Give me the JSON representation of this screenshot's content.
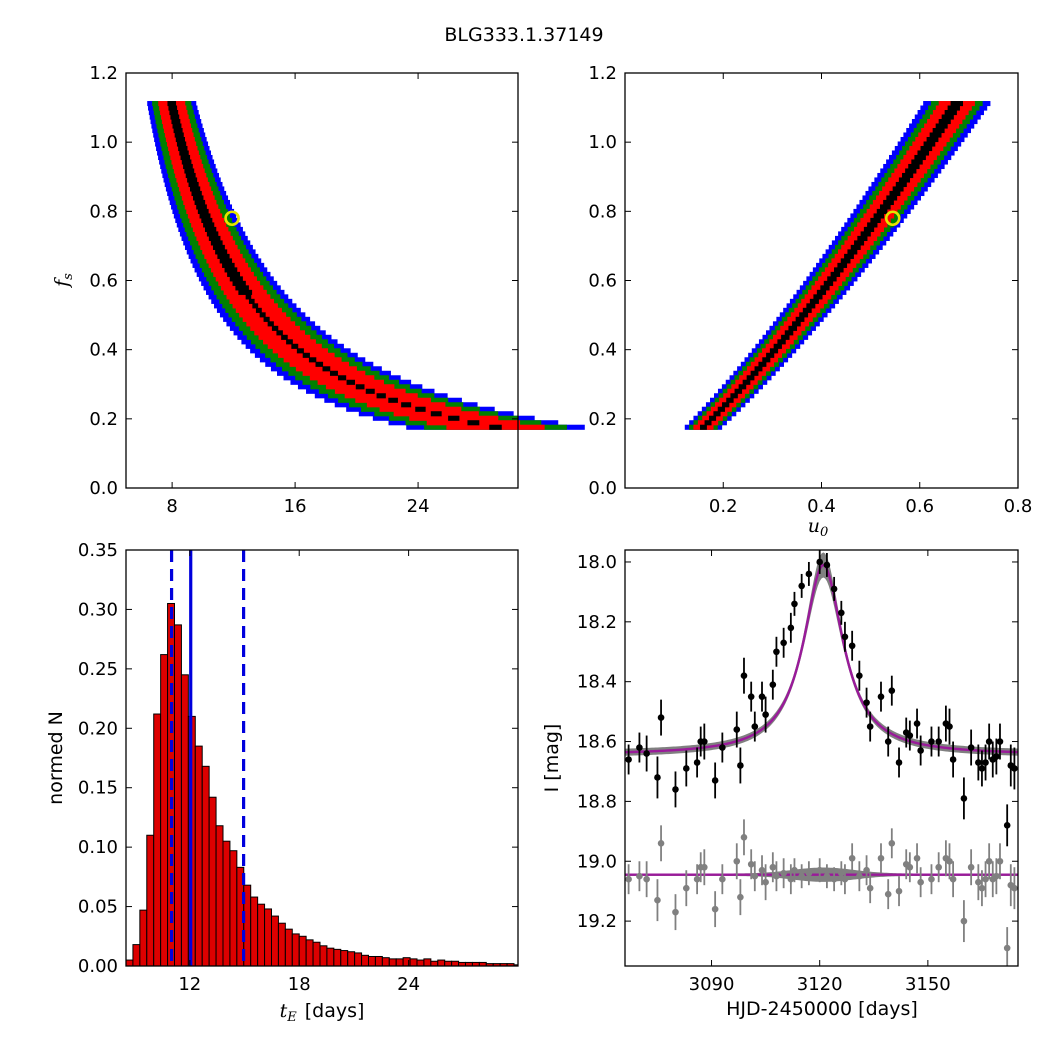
{
  "title": "BLG333.1.37149",
  "colors": {
    "sigma1": "#000000",
    "sigma2": "#ff0000",
    "sigma3": "#008000",
    "sigma4": "#0000ff",
    "best_fit_marker": "#e5e500",
    "hist_bar": "#dd0000",
    "hist_lines": "#0000dd",
    "data_points": "#000000",
    "residuals": "#808080",
    "model_curve": "#9a1a9a",
    "model_band": "#808080"
  },
  "panels": {
    "top_left": {
      "ylabel": "f",
      "ylabel_sub": "s",
      "xlabel": "",
      "xticks": [
        "8",
        "16",
        "24"
      ],
      "yticks": [
        "0.0",
        "0.2",
        "0.4",
        "0.6",
        "0.8",
        "1.0",
        "1.2"
      ]
    },
    "top_right": {
      "xlabel": "u",
      "xlabel_sub": "0",
      "xticks": [
        "0.2",
        "0.4",
        "0.6",
        "0.8"
      ],
      "yticks": [
        "0.0",
        "0.2",
        "0.4",
        "0.6",
        "0.8",
        "1.0",
        "1.2"
      ]
    },
    "bottom_left": {
      "ylabel": "normed N",
      "xlabel_math": "t",
      "xlabel_sub": "E",
      "xlabel_unit": "[days]",
      "xticks": [
        "12",
        "18",
        "24"
      ],
      "yticks": [
        "0.00",
        "0.05",
        "0.10",
        "0.15",
        "0.20",
        "0.25",
        "0.30",
        "0.35"
      ]
    },
    "bottom_right": {
      "ylabel": "I [mag]",
      "xlabel": "HJD-2450000 [days]",
      "xticks": [
        "3090",
        "3120",
        "3150"
      ],
      "yticks": [
        "18.0",
        "18.2",
        "18.4",
        "18.6",
        "18.8",
        "19.0",
        "19.2"
      ]
    }
  },
  "chart_data": [
    {
      "type": "heatmap",
      "panel": "top_left",
      "description_x": "tE (days)",
      "xlim": [
        5.0,
        30.5
      ],
      "ylim": [
        0.0,
        1.2
      ],
      "yscale": "linear",
      "best_fit": {
        "x": 11.9,
        "y": 0.78
      },
      "contour_model": {
        "relation": "tE ≈ 8.55 / fs^0.69 (fs from 0.17 to 1.11)",
        "sigma_halfwidths_fraction": [
          0.035,
          0.11,
          0.16,
          0.2
        ]
      }
    },
    {
      "type": "heatmap",
      "panel": "top_right",
      "description_x": "u0",
      "xlim": [
        0.0,
        0.8
      ],
      "ylim": [
        0.0,
        1.2
      ],
      "best_fit": {
        "x": 0.545,
        "y": 0.78
      },
      "contour_model": {
        "relation": "u0 ≈ 0.625·fs^0.77 (fs from 0.17 to 1.11)",
        "sigma_halfwidths": [
          0.015,
          0.035,
          0.05,
          0.065
        ]
      }
    },
    {
      "type": "bar",
      "panel": "bottom_left",
      "xlim": [
        8.5,
        30.0
      ],
      "ylim": [
        0.0,
        0.35
      ],
      "bin_start": 8.5,
      "bin_width": 0.38,
      "values": [
        0.005,
        0.018,
        0.047,
        0.11,
        0.212,
        0.262,
        0.305,
        0.287,
        0.245,
        0.21,
        0.185,
        0.168,
        0.142,
        0.118,
        0.105,
        0.097,
        0.083,
        0.068,
        0.058,
        0.052,
        0.048,
        0.042,
        0.036,
        0.031,
        0.027,
        0.025,
        0.022,
        0.02,
        0.017,
        0.015,
        0.014,
        0.013,
        0.012,
        0.011,
        0.009,
        0.008,
        0.008,
        0.007,
        0.006,
        0.006,
        0.007,
        0.006,
        0.005,
        0.006,
        0.004,
        0.005,
        0.004,
        0.004,
        0.003,
        0.003,
        0.003,
        0.003,
        0.002,
        0.002,
        0.002,
        0.002,
        0.001,
        0.001,
        0.001,
        0.001,
        0.001,
        0.001,
        0.001
      ],
      "vlines": [
        {
          "x": 12.05,
          "style": "solid"
        },
        {
          "x": 11.0,
          "style": "dashed"
        },
        {
          "x": 14.95,
          "style": "dashed"
        }
      ]
    },
    {
      "type": "scatter",
      "panel": "bottom_right",
      "xlim": [
        3066,
        3175
      ],
      "ylim": [
        19.35,
        17.96
      ],
      "y_inverted": true,
      "model": {
        "t0": 3121.0,
        "peak_mag": 18.01,
        "base_mag": 18.645,
        "width": 8.5
      },
      "residual_baseline": 19.045,
      "data": [
        [
          3067,
          18.66,
          0.05
        ],
        [
          3070,
          18.62,
          0.05
        ],
        [
          3072,
          18.64,
          0.06
        ],
        [
          3075,
          18.72,
          0.07
        ],
        [
          3076,
          18.52,
          0.06
        ],
        [
          3080,
          18.76,
          0.06
        ],
        [
          3083,
          18.69,
          0.06
        ],
        [
          3086,
          18.67,
          0.05
        ],
        [
          3087,
          18.6,
          0.05
        ],
        [
          3088,
          18.6,
          0.06
        ],
        [
          3091,
          18.73,
          0.06
        ],
        [
          3093,
          18.62,
          0.05
        ],
        [
          3097,
          18.56,
          0.06
        ],
        [
          3098,
          18.68,
          0.06
        ],
        [
          3099,
          18.38,
          0.06
        ],
        [
          3101,
          18.45,
          0.05
        ],
        [
          3102,
          18.55,
          0.05
        ],
        [
          3104,
          18.45,
          0.05
        ],
        [
          3105,
          18.51,
          0.06
        ],
        [
          3107,
          18.41,
          0.05
        ],
        [
          3108,
          18.3,
          0.05
        ],
        [
          3110,
          18.27,
          0.05
        ],
        [
          3112,
          18.22,
          0.05
        ],
        [
          3113,
          18.14,
          0.04
        ],
        [
          3115,
          18.08,
          0.04
        ],
        [
          3117,
          18.04,
          0.04
        ],
        [
          3120,
          18.0,
          0.04
        ],
        [
          3122,
          18.01,
          0.04
        ],
        [
          3124,
          18.09,
          0.04
        ],
        [
          3126,
          18.17,
          0.04
        ],
        [
          3127,
          18.25,
          0.05
        ],
        [
          3129,
          18.28,
          0.05
        ],
        [
          3131,
          18.38,
          0.05
        ],
        [
          3133,
          18.47,
          0.05
        ],
        [
          3134,
          18.55,
          0.05
        ],
        [
          3137,
          18.45,
          0.05
        ],
        [
          3139,
          18.6,
          0.05
        ],
        [
          3140,
          18.43,
          0.05
        ],
        [
          3142,
          18.67,
          0.05
        ],
        [
          3144,
          18.57,
          0.05
        ],
        [
          3145,
          18.58,
          0.05
        ],
        [
          3147,
          18.54,
          0.05
        ],
        [
          3148,
          18.63,
          0.05
        ],
        [
          3151,
          18.6,
          0.05
        ],
        [
          3153,
          18.6,
          0.05
        ],
        [
          3155,
          18.54,
          0.06
        ],
        [
          3156,
          18.55,
          0.06
        ],
        [
          3157,
          18.66,
          0.06
        ],
        [
          3160,
          18.79,
          0.07
        ],
        [
          3162,
          18.62,
          0.06
        ],
        [
          3164,
          18.67,
          0.06
        ],
        [
          3165,
          18.69,
          0.06
        ],
        [
          3166,
          18.67,
          0.06
        ],
        [
          3167,
          18.6,
          0.06
        ],
        [
          3168,
          18.66,
          0.06
        ],
        [
          3169,
          18.65,
          0.06
        ],
        [
          3170,
          18.6,
          0.06
        ],
        [
          3172,
          18.88,
          0.07
        ],
        [
          3173,
          18.68,
          0.07
        ],
        [
          3174,
          18.69,
          0.07
        ]
      ],
      "residuals": [
        [
          3067,
          19.06,
          0.05
        ],
        [
          3070,
          19.05,
          0.05
        ],
        [
          3072,
          19.06,
          0.06
        ],
        [
          3075,
          19.13,
          0.07
        ],
        [
          3076,
          18.94,
          0.06
        ],
        [
          3080,
          19.17,
          0.06
        ],
        [
          3083,
          19.09,
          0.06
        ],
        [
          3086,
          19.06,
          0.05
        ],
        [
          3087,
          19.02,
          0.05
        ],
        [
          3088,
          19.02,
          0.06
        ],
        [
          3091,
          19.16,
          0.06
        ],
        [
          3093,
          19.06,
          0.05
        ],
        [
          3097,
          19.0,
          0.06
        ],
        [
          3098,
          19.12,
          0.06
        ],
        [
          3099,
          18.92,
          0.06
        ],
        [
          3101,
          19.01,
          0.05
        ],
        [
          3102,
          19.05,
          0.05
        ],
        [
          3104,
          19.03,
          0.05
        ],
        [
          3105,
          19.07,
          0.06
        ],
        [
          3107,
          19.02,
          0.05
        ],
        [
          3108,
          19.05,
          0.05
        ],
        [
          3110,
          19.04,
          0.05
        ],
        [
          3112,
          19.06,
          0.05
        ],
        [
          3113,
          19.03,
          0.04
        ],
        [
          3115,
          19.05,
          0.04
        ],
        [
          3117,
          19.04,
          0.04
        ],
        [
          3120,
          19.03,
          0.04
        ],
        [
          3122,
          19.05,
          0.04
        ],
        [
          3124,
          19.06,
          0.04
        ],
        [
          3126,
          19.04,
          0.04
        ],
        [
          3127,
          19.06,
          0.05
        ],
        [
          3129,
          18.99,
          0.05
        ],
        [
          3131,
          19.05,
          0.05
        ],
        [
          3133,
          19.03,
          0.05
        ],
        [
          3134,
          19.09,
          0.05
        ],
        [
          3137,
          18.99,
          0.05
        ],
        [
          3139,
          19.11,
          0.05
        ],
        [
          3140,
          18.94,
          0.05
        ],
        [
          3142,
          19.1,
          0.05
        ],
        [
          3144,
          19.01,
          0.05
        ],
        [
          3145,
          19.02,
          0.05
        ],
        [
          3147,
          18.99,
          0.05
        ],
        [
          3148,
          19.07,
          0.05
        ],
        [
          3151,
          19.06,
          0.05
        ],
        [
          3153,
          19.02,
          0.05
        ],
        [
          3155,
          18.99,
          0.06
        ],
        [
          3156,
          19.0,
          0.06
        ],
        [
          3157,
          19.06,
          0.06
        ],
        [
          3160,
          19.2,
          0.07
        ],
        [
          3162,
          19.02,
          0.06
        ],
        [
          3164,
          19.07,
          0.06
        ],
        [
          3165,
          19.09,
          0.06
        ],
        [
          3166,
          19.06,
          0.06
        ],
        [
          3167,
          19.0,
          0.06
        ],
        [
          3168,
          19.06,
          0.06
        ],
        [
          3169,
          19.05,
          0.06
        ],
        [
          3170,
          19.0,
          0.06
        ],
        [
          3172,
          19.29,
          0.07
        ],
        [
          3173,
          19.08,
          0.07
        ],
        [
          3174,
          19.09,
          0.07
        ]
      ]
    }
  ]
}
